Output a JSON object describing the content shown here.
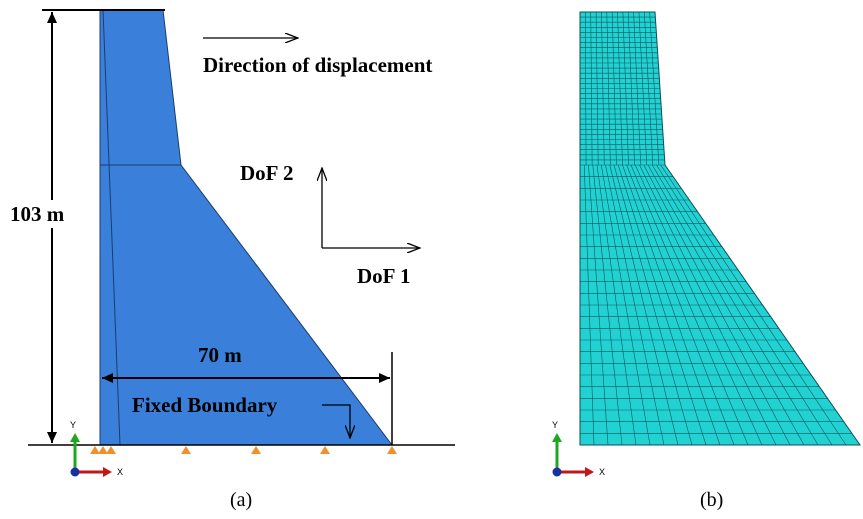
{
  "panel_a": {
    "direction_label": "Direction of displacement",
    "dof2_label": "DoF 2",
    "dof1_label": "DoF 1",
    "height_label": "103 m",
    "width_label": "70 m",
    "boundary_label": "Fixed Boundary",
    "axis_y": "Y",
    "axis_x": "X",
    "caption": "(a)"
  },
  "panel_b": {
    "axis_y": "Y",
    "axis_x": "X",
    "caption": "(b)"
  }
}
